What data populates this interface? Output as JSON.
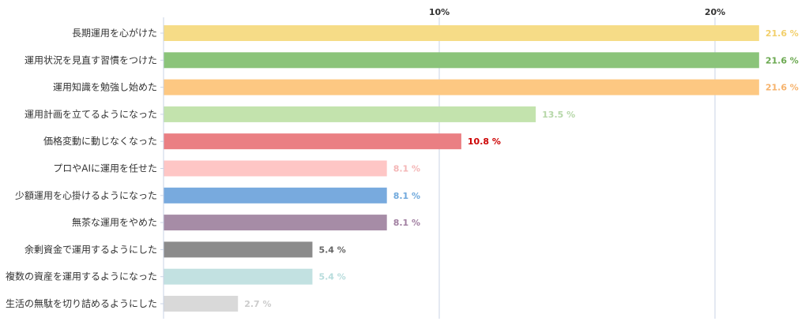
{
  "chart_data": {
    "type": "bar",
    "orientation": "horizontal",
    "categories": [
      "長期運用を心がけた",
      "運用状況を見直す習慣をつけた",
      "運用知識を勉強し始めた",
      "運用計画を立てるようになった",
      "価格変動に動じなくなった",
      "プロやAIに運用を任せた",
      "少額運用を心掛けるようになった",
      "無茶な運用をやめた",
      "余剰資金で運用するようにした",
      "複数の資産を運用するようになった",
      "生活の無駄を切り詰めるようにした"
    ],
    "values": [
      21.6,
      21.6,
      21.6,
      13.5,
      10.8,
      8.1,
      8.1,
      8.1,
      5.4,
      5.4,
      2.7
    ],
    "value_labels": [
      "21.6 %",
      "21.6 %",
      "21.6 %",
      "13.5 %",
      "10.8 %",
      "8.1 %",
      "8.1 %",
      "8.1 %",
      "5.4 %",
      "5.4 %",
      "2.7 %"
    ],
    "bar_colors": [
      "#f6dc87",
      "#8bc47a",
      "#fdc882",
      "#c3e3ad",
      "#ea7f83",
      "#fec6c5",
      "#78aade",
      "#a68ca6",
      "#8b8b8b",
      "#c2e1e1",
      "#d9d9d9"
    ],
    "label_colors": [
      "#f2cf6a",
      "#6aa84f",
      "#f6b26b",
      "#b6d7a8",
      "#cc0000",
      "#f4b6b6",
      "#6fa8dc",
      "#a17fa1",
      "#666666",
      "#b7dcdc",
      "#cccccc"
    ],
    "x_ticks": [
      10,
      20
    ],
    "x_tick_labels": [
      "10%",
      "20%"
    ],
    "xlim": [
      0,
      22
    ],
    "grid": true,
    "title": "",
    "xlabel": "",
    "ylabel": ""
  }
}
